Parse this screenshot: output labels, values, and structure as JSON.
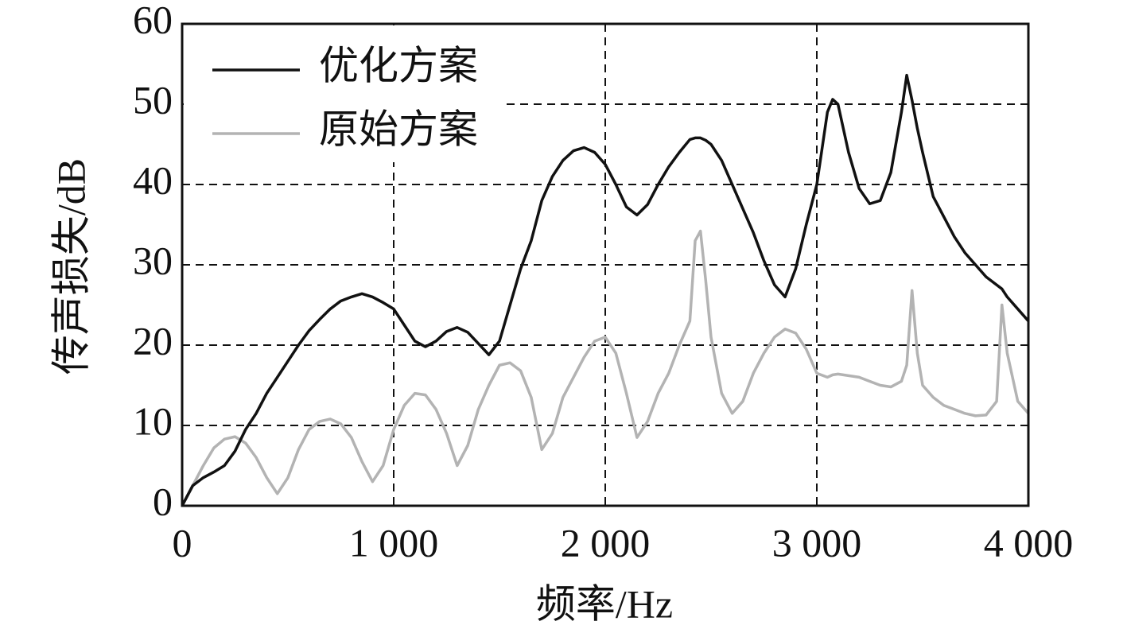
{
  "chart_data": {
    "type": "line",
    "xlabel": "频率/Hz",
    "ylabel": "传声损失/dB",
    "x": [
      0,
      50,
      100,
      150,
      200,
      250,
      300,
      350,
      400,
      450,
      500,
      550,
      600,
      650,
      700,
      750,
      800,
      850,
      900,
      950,
      1000,
      1050,
      1100,
      1150,
      1200,
      1250,
      1300,
      1350,
      1400,
      1450,
      1500,
      1550,
      1600,
      1650,
      1700,
      1750,
      1800,
      1850,
      1900,
      1950,
      2000,
      2050,
      2100,
      2150,
      2200,
      2250,
      2300,
      2350,
      2400,
      2425,
      2450,
      2475,
      2500,
      2550,
      2600,
      2650,
      2700,
      2750,
      2800,
      2850,
      2900,
      2950,
      3000,
      3050,
      3075,
      3100,
      3150,
      3200,
      3250,
      3300,
      3350,
      3400,
      3425,
      3450,
      3475,
      3500,
      3550,
      3600,
      3650,
      3700,
      3750,
      3800,
      3850,
      3875,
      3900,
      3950,
      4000
    ],
    "series": [
      {
        "name": "优化方案",
        "color": "#111111",
        "values": [
          0,
          2.5,
          3.5,
          4.2,
          5,
          6.8,
          9.5,
          11.5,
          14,
          16,
          18,
          20,
          21.8,
          23.2,
          24.5,
          25.5,
          26,
          26.4,
          26,
          25.3,
          24.5,
          22.5,
          20.5,
          19.8,
          20.5,
          21.7,
          22.2,
          21.6,
          20.2,
          18.8,
          20.5,
          25,
          29.5,
          33,
          38,
          41,
          43,
          44.2,
          44.6,
          44,
          42.5,
          40,
          37.2,
          36.2,
          37.5,
          40,
          42.2,
          44,
          45.6,
          45.8,
          45.8,
          45.5,
          45,
          43,
          40,
          37,
          34,
          30.5,
          27.5,
          26,
          29.5,
          35,
          40,
          49,
          50.6,
          50,
          44,
          39.5,
          37.6,
          38,
          41.5,
          49,
          53.6,
          50.5,
          47,
          44,
          38.5,
          36,
          33.5,
          31.5,
          30,
          28.5,
          27.5,
          27,
          26,
          24.5,
          23
        ]
      },
      {
        "name": "原始方案",
        "color": "#b3b3b3",
        "values": [
          0,
          2.5,
          5,
          7.2,
          8.3,
          8.6,
          7.8,
          6,
          3.5,
          1.5,
          3.5,
          7,
          9.5,
          10.5,
          10.8,
          10.2,
          8.5,
          5.5,
          3,
          5,
          9.5,
          12.5,
          14,
          13.8,
          12,
          9,
          5,
          7.5,
          12,
          15,
          17.5,
          17.8,
          16.8,
          13.5,
          7,
          9,
          13.5,
          16,
          18.5,
          20.5,
          21,
          19,
          14,
          8.5,
          10.5,
          14,
          16.5,
          20,
          23,
          33,
          34.2,
          28,
          21,
          14,
          11.5,
          13,
          16.5,
          19,
          21,
          22,
          21.5,
          19.5,
          16.5,
          16,
          16.3,
          16.4,
          16.2,
          16,
          15.5,
          15,
          14.8,
          15.5,
          17.5,
          26.8,
          19,
          15,
          13.5,
          12.5,
          12,
          11.5,
          11.2,
          11.3,
          13,
          25,
          19,
          13,
          11.5
        ]
      }
    ],
    "xlim": [
      0,
      4000
    ],
    "xticks": [
      0,
      {
        "value": 1000,
        "label": "1 000"
      },
      {
        "value": 2000,
        "label": "2 000"
      },
      {
        "value": 3000,
        "label": "3 000"
      },
      {
        "value": 4000,
        "label": "4 000"
      }
    ],
    "ylim": [
      0,
      60
    ],
    "yticks": [
      0,
      10,
      20,
      30,
      40,
      50,
      60
    ],
    "grid": true,
    "legend": "upper left"
  }
}
